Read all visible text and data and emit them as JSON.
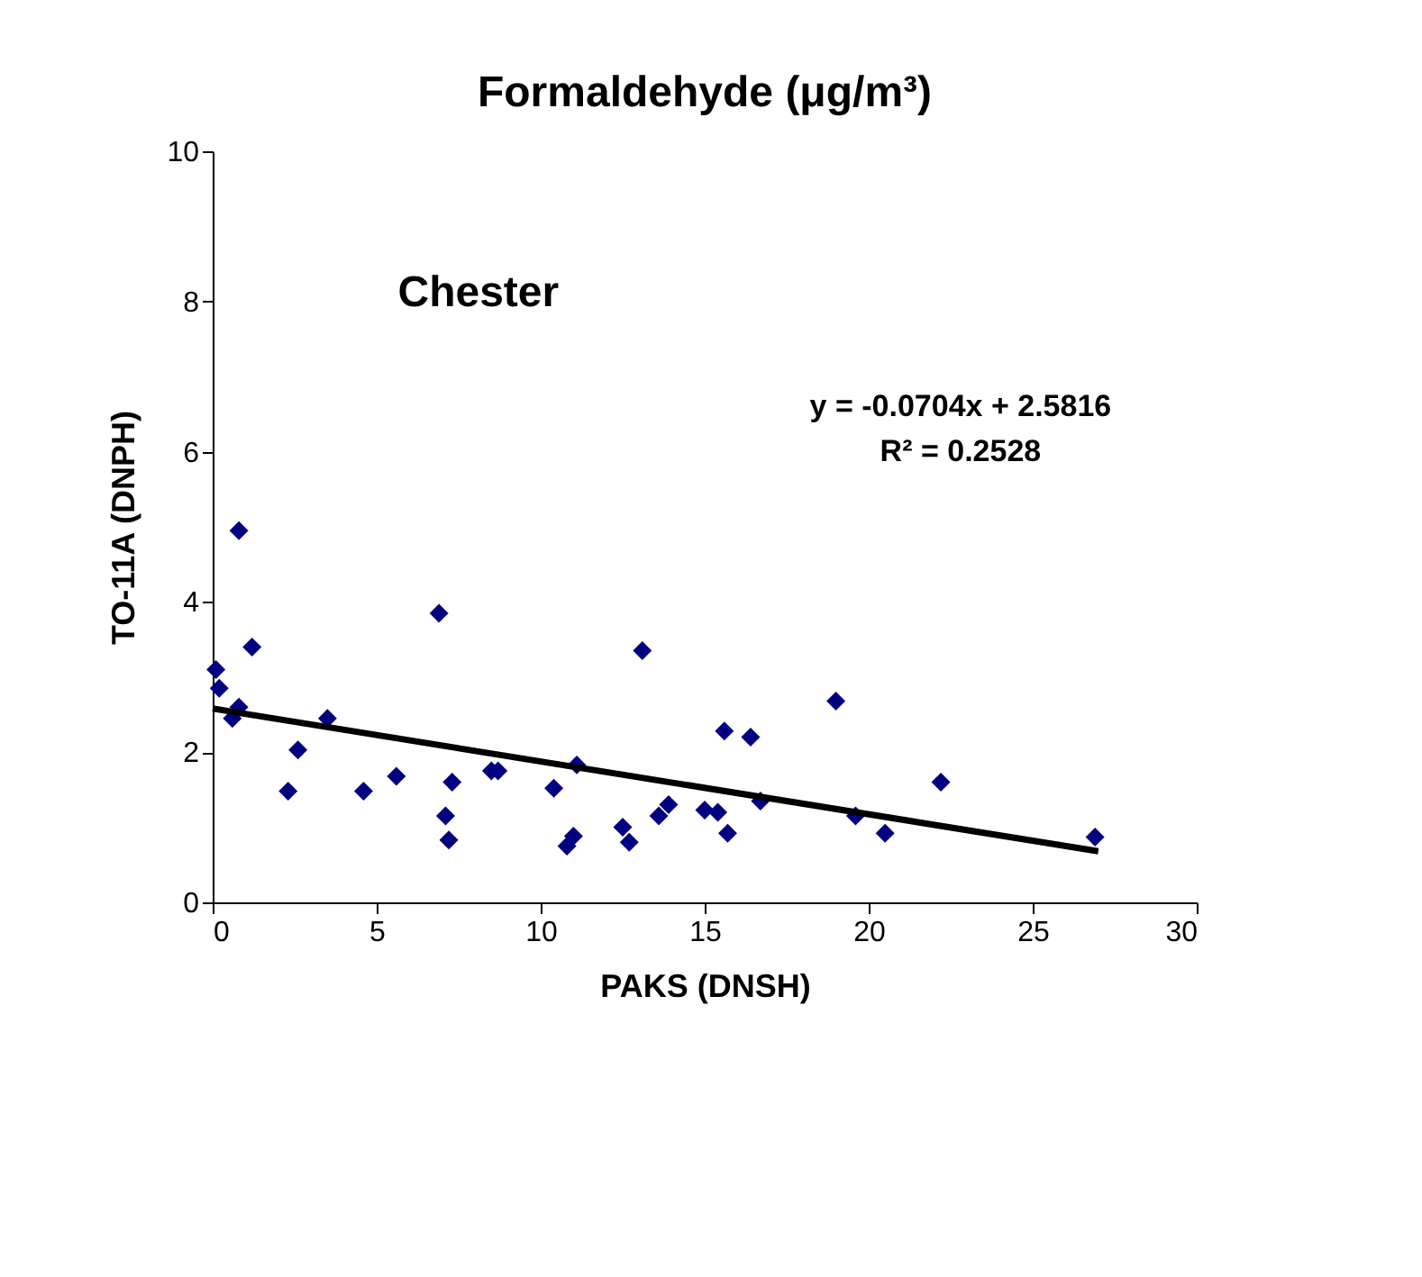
{
  "chart_data": {
    "type": "scatter",
    "title": "Formaldehyde (μg/m³)",
    "xlabel": "PAKS (DNSH)",
    "ylabel": "TO-11A (DNPH)",
    "annotations": [
      "Chester",
      "y = -0.0704x + 2.5816",
      "R² = 0.2528"
    ],
    "series": [
      {
        "color": "#000080",
        "marker": "diamond",
        "x": [
          0.1,
          0.2,
          0.6,
          0.8,
          0.8,
          1.2,
          2.3,
          2.6,
          3.5,
          4.6,
          5.6,
          6.9,
          7.1,
          7.2,
          7.3,
          8.5,
          8.7,
          10.4,
          10.8,
          11.0,
          11.1,
          12.5,
          12.7,
          13.1,
          13.6,
          13.9,
          15.0,
          15.4,
          15.6,
          15.7,
          16.4,
          16.7,
          19.0,
          19.6,
          20.5,
          22.2,
          26.9
        ],
        "values": [
          3.1,
          2.85,
          2.45,
          4.95,
          2.6,
          3.4,
          1.48,
          2.03,
          2.45,
          1.48,
          1.68,
          3.85,
          1.15,
          0.83,
          1.6,
          1.75,
          1.75,
          1.52,
          0.75,
          0.88,
          1.83,
          1.0,
          0.8,
          3.35,
          1.15,
          1.3,
          1.23,
          1.2,
          2.28,
          0.92,
          2.2,
          1.35,
          2.68,
          1.15,
          0.92,
          1.6,
          0.87
        ]
      },
      {
        "type": "line",
        "color": "#000000",
        "x": [
          0,
          27
        ],
        "values": [
          2.58,
          0.68
        ]
      }
    ],
    "xlim": [
      0,
      30
    ],
    "xticks": [
      0,
      5,
      10,
      15,
      20,
      25,
      30
    ],
    "ylim": [
      0,
      10
    ],
    "yticks": [
      0,
      2,
      4,
      6,
      8,
      10
    ],
    "grid": false
  }
}
